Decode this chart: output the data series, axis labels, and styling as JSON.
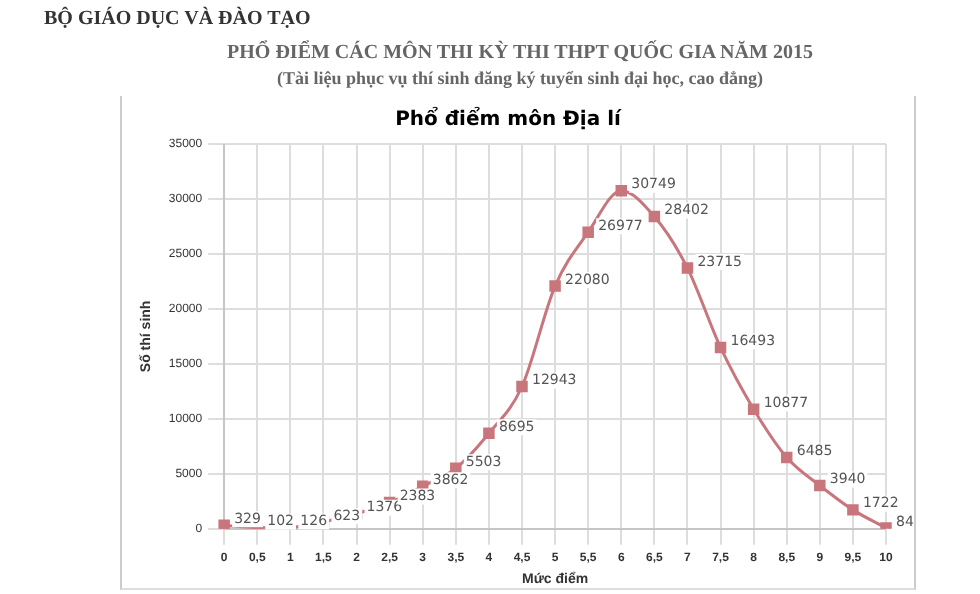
{
  "chart_data": {
    "type": "line",
    "title": "Phổ điểm môn Địa lí",
    "xlabel": "Mức điểm",
    "ylabel": "Số thí sinh",
    "annotations": [
      "BỘ GIÁO DỤC VÀ ĐÀO TẠO",
      "PHỔ ĐIỂM CÁC MÔN THI KỲ THI THPT QUỐC GIA NĂM 2015",
      "(Tài liệu phục vụ thí sinh đăng ký tuyển sinh đại học, cao đẳng)"
    ],
    "categories": [
      "0",
      "0,5",
      "1",
      "1,5",
      "2",
      "2,5",
      "3",
      "3,5",
      "4",
      "4,5",
      "5",
      "5,5",
      "6",
      "6,5",
      "7",
      "7,5",
      "8",
      "8,5",
      "9",
      "9,5",
      "10"
    ],
    "series": [
      {
        "color": "#c8767c",
        "values": [
          329,
          102,
          126,
          623,
          1376,
          2383,
          3862,
          5503,
          8695,
          12943,
          22080,
          26977,
          30749,
          28402,
          23715,
          16493,
          10877,
          6485,
          3940,
          1722,
          84
        ]
      }
    ],
    "ylim": [
      0,
      35000
    ],
    "yticks": [
      0,
      5000,
      10000,
      15000,
      20000,
      25000,
      30000,
      35000
    ],
    "grid": true,
    "marker": "square",
    "data_labels": true
  }
}
